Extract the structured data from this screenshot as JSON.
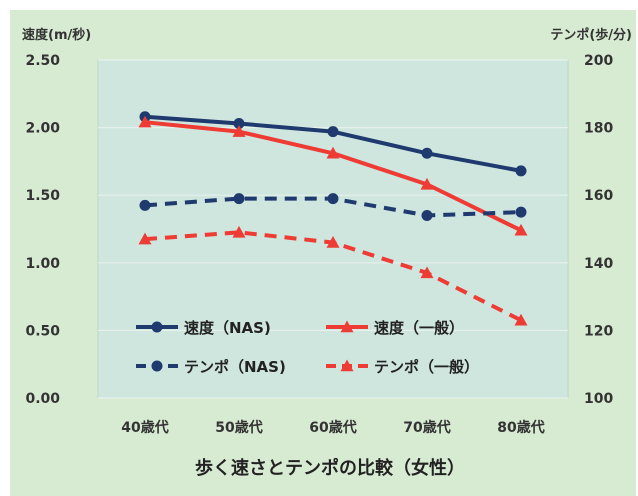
{
  "chart_data": {
    "type": "line",
    "title": "歩く速さとテンポの比較（女性）",
    "left_axis_label": "速度(m/秒)",
    "right_axis_label": "テンポ(歩/分)",
    "categories": [
      "40歳代",
      "50歳代",
      "60歳代",
      "70歳代",
      "80歳代"
    ],
    "left_axis": {
      "ylim": [
        0,
        2.5
      ],
      "ticks": [
        "0.00",
        "0.50",
        "1.00",
        "1.50",
        "2.00",
        "2.50"
      ]
    },
    "right_axis": {
      "ylim": [
        100,
        200
      ],
      "ticks": [
        "100",
        "120",
        "140",
        "160",
        "180",
        "200"
      ]
    },
    "grid": true,
    "legend_position": "lower-center",
    "series": [
      {
        "name": "速度（NAS)",
        "axis": "left",
        "values": [
          2.08,
          2.03,
          1.97,
          1.81,
          1.68
        ],
        "color": "#1f3a6e",
        "marker": "circle",
        "dashed": false
      },
      {
        "name": "速度（一般）",
        "axis": "left",
        "values": [
          2.04,
          1.97,
          1.81,
          1.58,
          1.24
        ],
        "color": "#ee3b34",
        "marker": "triangle",
        "dashed": false
      },
      {
        "name": "テンポ（NAS)",
        "axis": "right",
        "values": [
          157,
          159,
          159,
          154,
          155
        ],
        "color": "#1f3a6e",
        "marker": "circle",
        "dashed": true
      },
      {
        "name": "テンポ（一般）",
        "axis": "right",
        "values": [
          147,
          149,
          146,
          137,
          123
        ],
        "color": "#ee3b34",
        "marker": "triangle",
        "dashed": true
      }
    ]
  }
}
